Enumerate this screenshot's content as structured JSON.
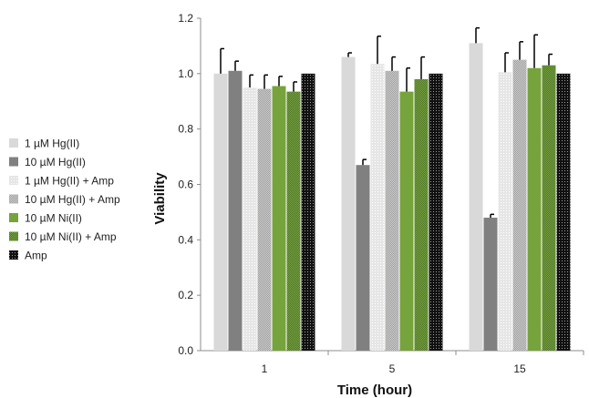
{
  "chart_data": {
    "type": "bar",
    "xlabel": "Time (hour)",
    "ylabel": "Viability",
    "ylim": [
      0,
      1.2
    ],
    "yticks": [
      "0.0",
      "0.2",
      "0.4",
      "0.6",
      "0.8",
      "1.0",
      "1.2"
    ],
    "categories": [
      "1",
      "5",
      "15"
    ],
    "grid": false,
    "legend_position": "left",
    "series": [
      {
        "name": "1 µM Hg(II)",
        "values": [
          1.0,
          1.06,
          1.11
        ],
        "errors": [
          0.09,
          0.015,
          0.055
        ],
        "color": "#d9d9d9",
        "pattern": "solid"
      },
      {
        "name": "10 µM Hg(II)",
        "values": [
          1.01,
          0.67,
          0.48
        ],
        "errors": [
          0.035,
          0.02,
          0.012
        ],
        "color": "#808080",
        "pattern": "solid"
      },
      {
        "name": "1 µM Hg(II) + Amp",
        "values": [
          0.95,
          1.035,
          1.005
        ],
        "errors": [
          0.045,
          0.1,
          0.07
        ],
        "color": "#e3e3e3",
        "pattern": "dots"
      },
      {
        "name": "10 µM Hg(II) + Amp",
        "values": [
          0.945,
          1.01,
          1.05
        ],
        "errors": [
          0.05,
          0.05,
          0.065
        ],
        "color": "#9a9a9a",
        "pattern": "checker"
      },
      {
        "name": "10 µM Ni(II)",
        "values": [
          0.955,
          0.935,
          1.02
        ],
        "errors": [
          0.035,
          0.085,
          0.12
        ],
        "color": "#77a33d",
        "pattern": "solid"
      },
      {
        "name": "10 µM Ni(II) + Amp",
        "values": [
          0.935,
          0.98,
          1.03
        ],
        "errors": [
          0.035,
          0.08,
          0.04
        ],
        "color": "#54782a",
        "pattern": "checker"
      },
      {
        "name": "Amp",
        "values": [
          1.0,
          1.0,
          1.0
        ],
        "errors": [
          0,
          0,
          0
        ],
        "color": "#111111",
        "pattern": "dots-dark"
      }
    ]
  }
}
